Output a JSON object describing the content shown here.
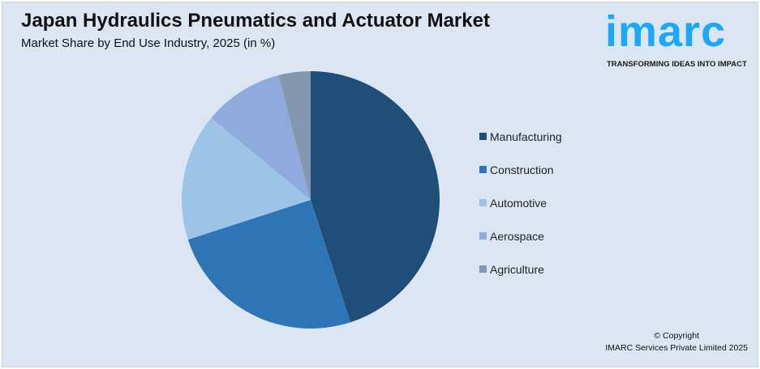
{
  "header": {
    "title": "Japan Hydraulics Pneumatics and Actuator Market",
    "subtitle": "Market Share by End Use Industry, 2025 (in %)"
  },
  "logo": {
    "word": "imarc",
    "tagline": "TRANSFORMING IDEAS INTO IMPACT",
    "color": "#1ea7f5"
  },
  "chart_data": {
    "type": "pie",
    "title": "Japan Hydraulics Pneumatics and Actuator Market",
    "subtitle": "Market Share by End Use Industry, 2025 (in %)",
    "categories": [
      "Manufacturing",
      "Construction",
      "Automotive",
      "Aerospace",
      "Agriculture"
    ],
    "values": [
      45,
      25,
      16,
      10,
      4
    ],
    "colors": [
      "#1f4e79",
      "#2e75b6",
      "#9dc3e6",
      "#8faadc",
      "#8497b0"
    ],
    "start": "top",
    "direction": "clockwise",
    "legend": "right"
  },
  "footer": {
    "copyright": "© Copyright",
    "company": "IMARC Services Private Limited 2025"
  }
}
